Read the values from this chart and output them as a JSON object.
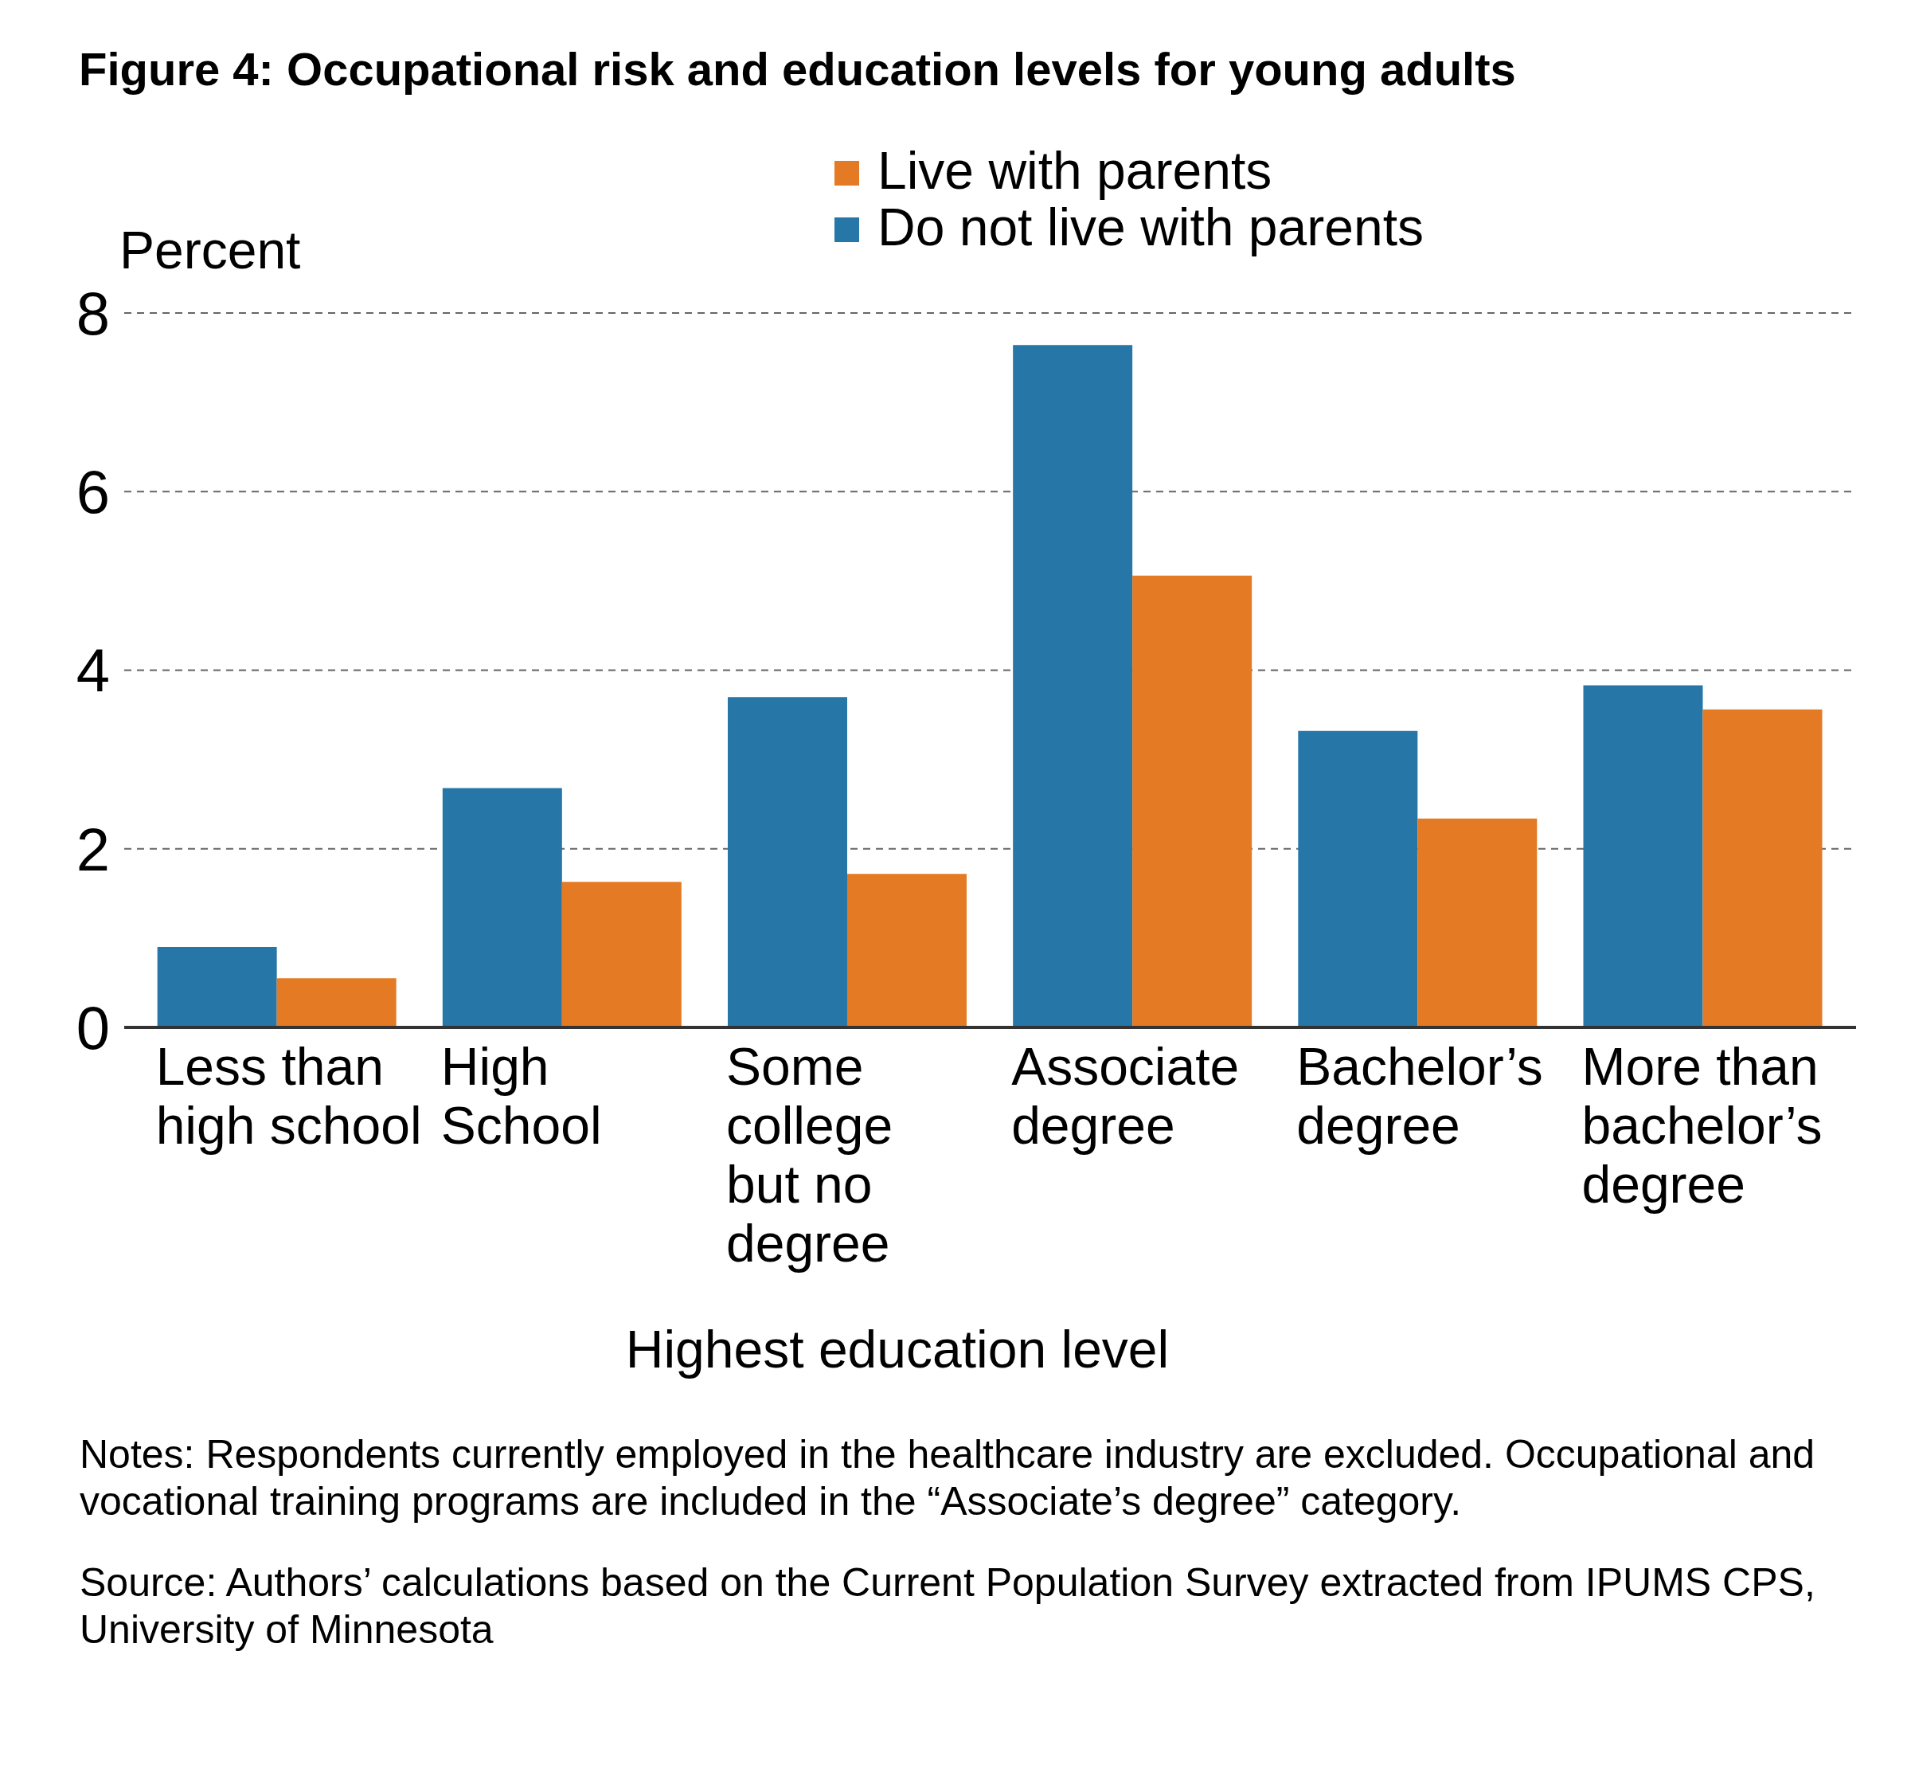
{
  "chart_data": {
    "type": "bar",
    "title": "Figure 4: Occupational risk and education levels for young adults",
    "xlabel": "Highest education level",
    "ylabel": "Percent",
    "categories": [
      "Less than\nhigh school",
      "High\nSchool",
      "Some\ncollege\nbut no\ndegree",
      "Associate\ndegree",
      "Bachelor’s\ndegree",
      "More than\nbachelor’s\ndegree"
    ],
    "series": [
      {
        "name": "Do not live with parents",
        "color": "#2676a8",
        "values": [
          0.9,
          2.68,
          3.7,
          7.64,
          3.32,
          3.83
        ]
      },
      {
        "name": "Live with parents",
        "color": "#e47a24",
        "values": [
          0.55,
          1.63,
          1.72,
          5.06,
          2.34,
          3.56
        ]
      }
    ],
    "ylim": [
      0,
      8
    ],
    "yticks": [
      0,
      2,
      4,
      6,
      8
    ],
    "grid": "y",
    "legend": "top",
    "annotations": [
      "Notes: Respondents currently employed in the healthcare industry are excluded. Occupational and vocational training programs are included in the “Associate’s degree” category.",
      "Source: Authors’ calculations based on the Current Population Survey extracted from IPUMS CPS, University of Minnesota"
    ]
  }
}
